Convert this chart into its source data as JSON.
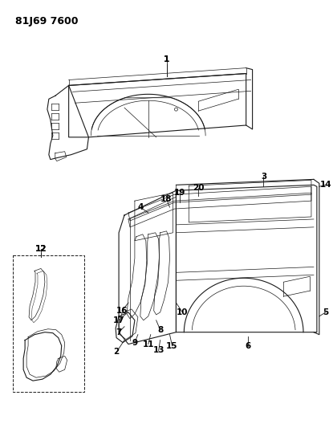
{
  "title": "81J69 7600",
  "bg_color": "#ffffff",
  "line_color": "#1a1a1a",
  "label_color": "#000000",
  "title_fontsize": 9,
  "label_fontsize": 7.5,
  "figsize": [
    4.15,
    5.33
  ],
  "dpi": 100
}
